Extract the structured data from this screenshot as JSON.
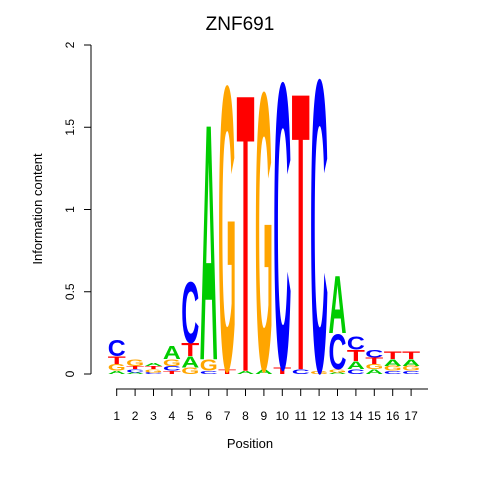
{
  "chart_data": {
    "type": "sequence-logo",
    "title": "ZNF691",
    "xlabel": "Position",
    "ylabel": "Information content",
    "ylim": [
      0,
      2
    ],
    "yticks": [
      "0",
      "0.5",
      "1",
      "1.5",
      "2"
    ],
    "positions": [
      "1",
      "2",
      "3",
      "4",
      "5",
      "6",
      "7",
      "8",
      "9",
      "10",
      "11",
      "12",
      "13",
      "14",
      "15",
      "16",
      "17"
    ],
    "colors": {
      "A": "#00cc00",
      "C": "#0000ff",
      "G": "#ffa500",
      "T": "#ff0000"
    },
    "stacks": [
      [
        [
          "A",
          0.02
        ],
        [
          "G",
          0.04
        ],
        [
          "T",
          0.05
        ],
        [
          "C",
          0.1
        ]
      ],
      [
        [
          "A",
          0.01
        ],
        [
          "C",
          0.02
        ],
        [
          "T",
          0.02
        ],
        [
          "G",
          0.04
        ]
      ],
      [
        [
          "C",
          0.01
        ],
        [
          "G",
          0.02
        ],
        [
          "T",
          0.02
        ],
        [
          "A",
          0.02
        ]
      ],
      [
        [
          "T",
          0.02
        ],
        [
          "C",
          0.03
        ],
        [
          "G",
          0.04
        ],
        [
          "A",
          0.08
        ]
      ],
      [
        [
          "G",
          0.04
        ],
        [
          "A",
          0.07
        ],
        [
          "T",
          0.08
        ],
        [
          "C",
          0.38
        ]
      ],
      [
        [
          "C",
          0.02
        ],
        [
          "G",
          0.07
        ],
        [
          "A",
          1.48
        ]
      ],
      [
        [
          "T",
          0.03
        ],
        [
          "G",
          1.78
        ]
      ],
      [
        [
          "A",
          0.02
        ],
        [
          "T",
          1.74
        ]
      ],
      [
        [
          "A",
          0.03
        ],
        [
          "G",
          1.74
        ]
      ],
      [
        [
          "T",
          0.04
        ],
        [
          "C",
          1.79
        ]
      ],
      [
        [
          "C",
          0.03
        ],
        [
          "T",
          1.74
        ]
      ],
      [
        [
          "G",
          0.02
        ],
        [
          "C",
          1.83
        ]
      ],
      [
        [
          "A",
          0.01
        ],
        [
          "G",
          0.02
        ],
        [
          "C",
          0.22
        ],
        [
          "A",
          0.36
        ]
      ],
      [
        [
          "C",
          0.03
        ],
        [
          "A",
          0.05
        ],
        [
          "T",
          0.07
        ],
        [
          "C",
          0.08
        ]
      ],
      [
        [
          "A",
          0.03
        ],
        [
          "G",
          0.03
        ],
        [
          "T",
          0.04
        ],
        [
          "C",
          0.05
        ]
      ],
      [
        [
          "C",
          0.02
        ],
        [
          "G",
          0.03
        ],
        [
          "A",
          0.04
        ],
        [
          "T",
          0.05
        ]
      ],
      [
        [
          "C",
          0.02
        ],
        [
          "G",
          0.03
        ],
        [
          "A",
          0.04
        ],
        [
          "T",
          0.05
        ]
      ]
    ]
  }
}
